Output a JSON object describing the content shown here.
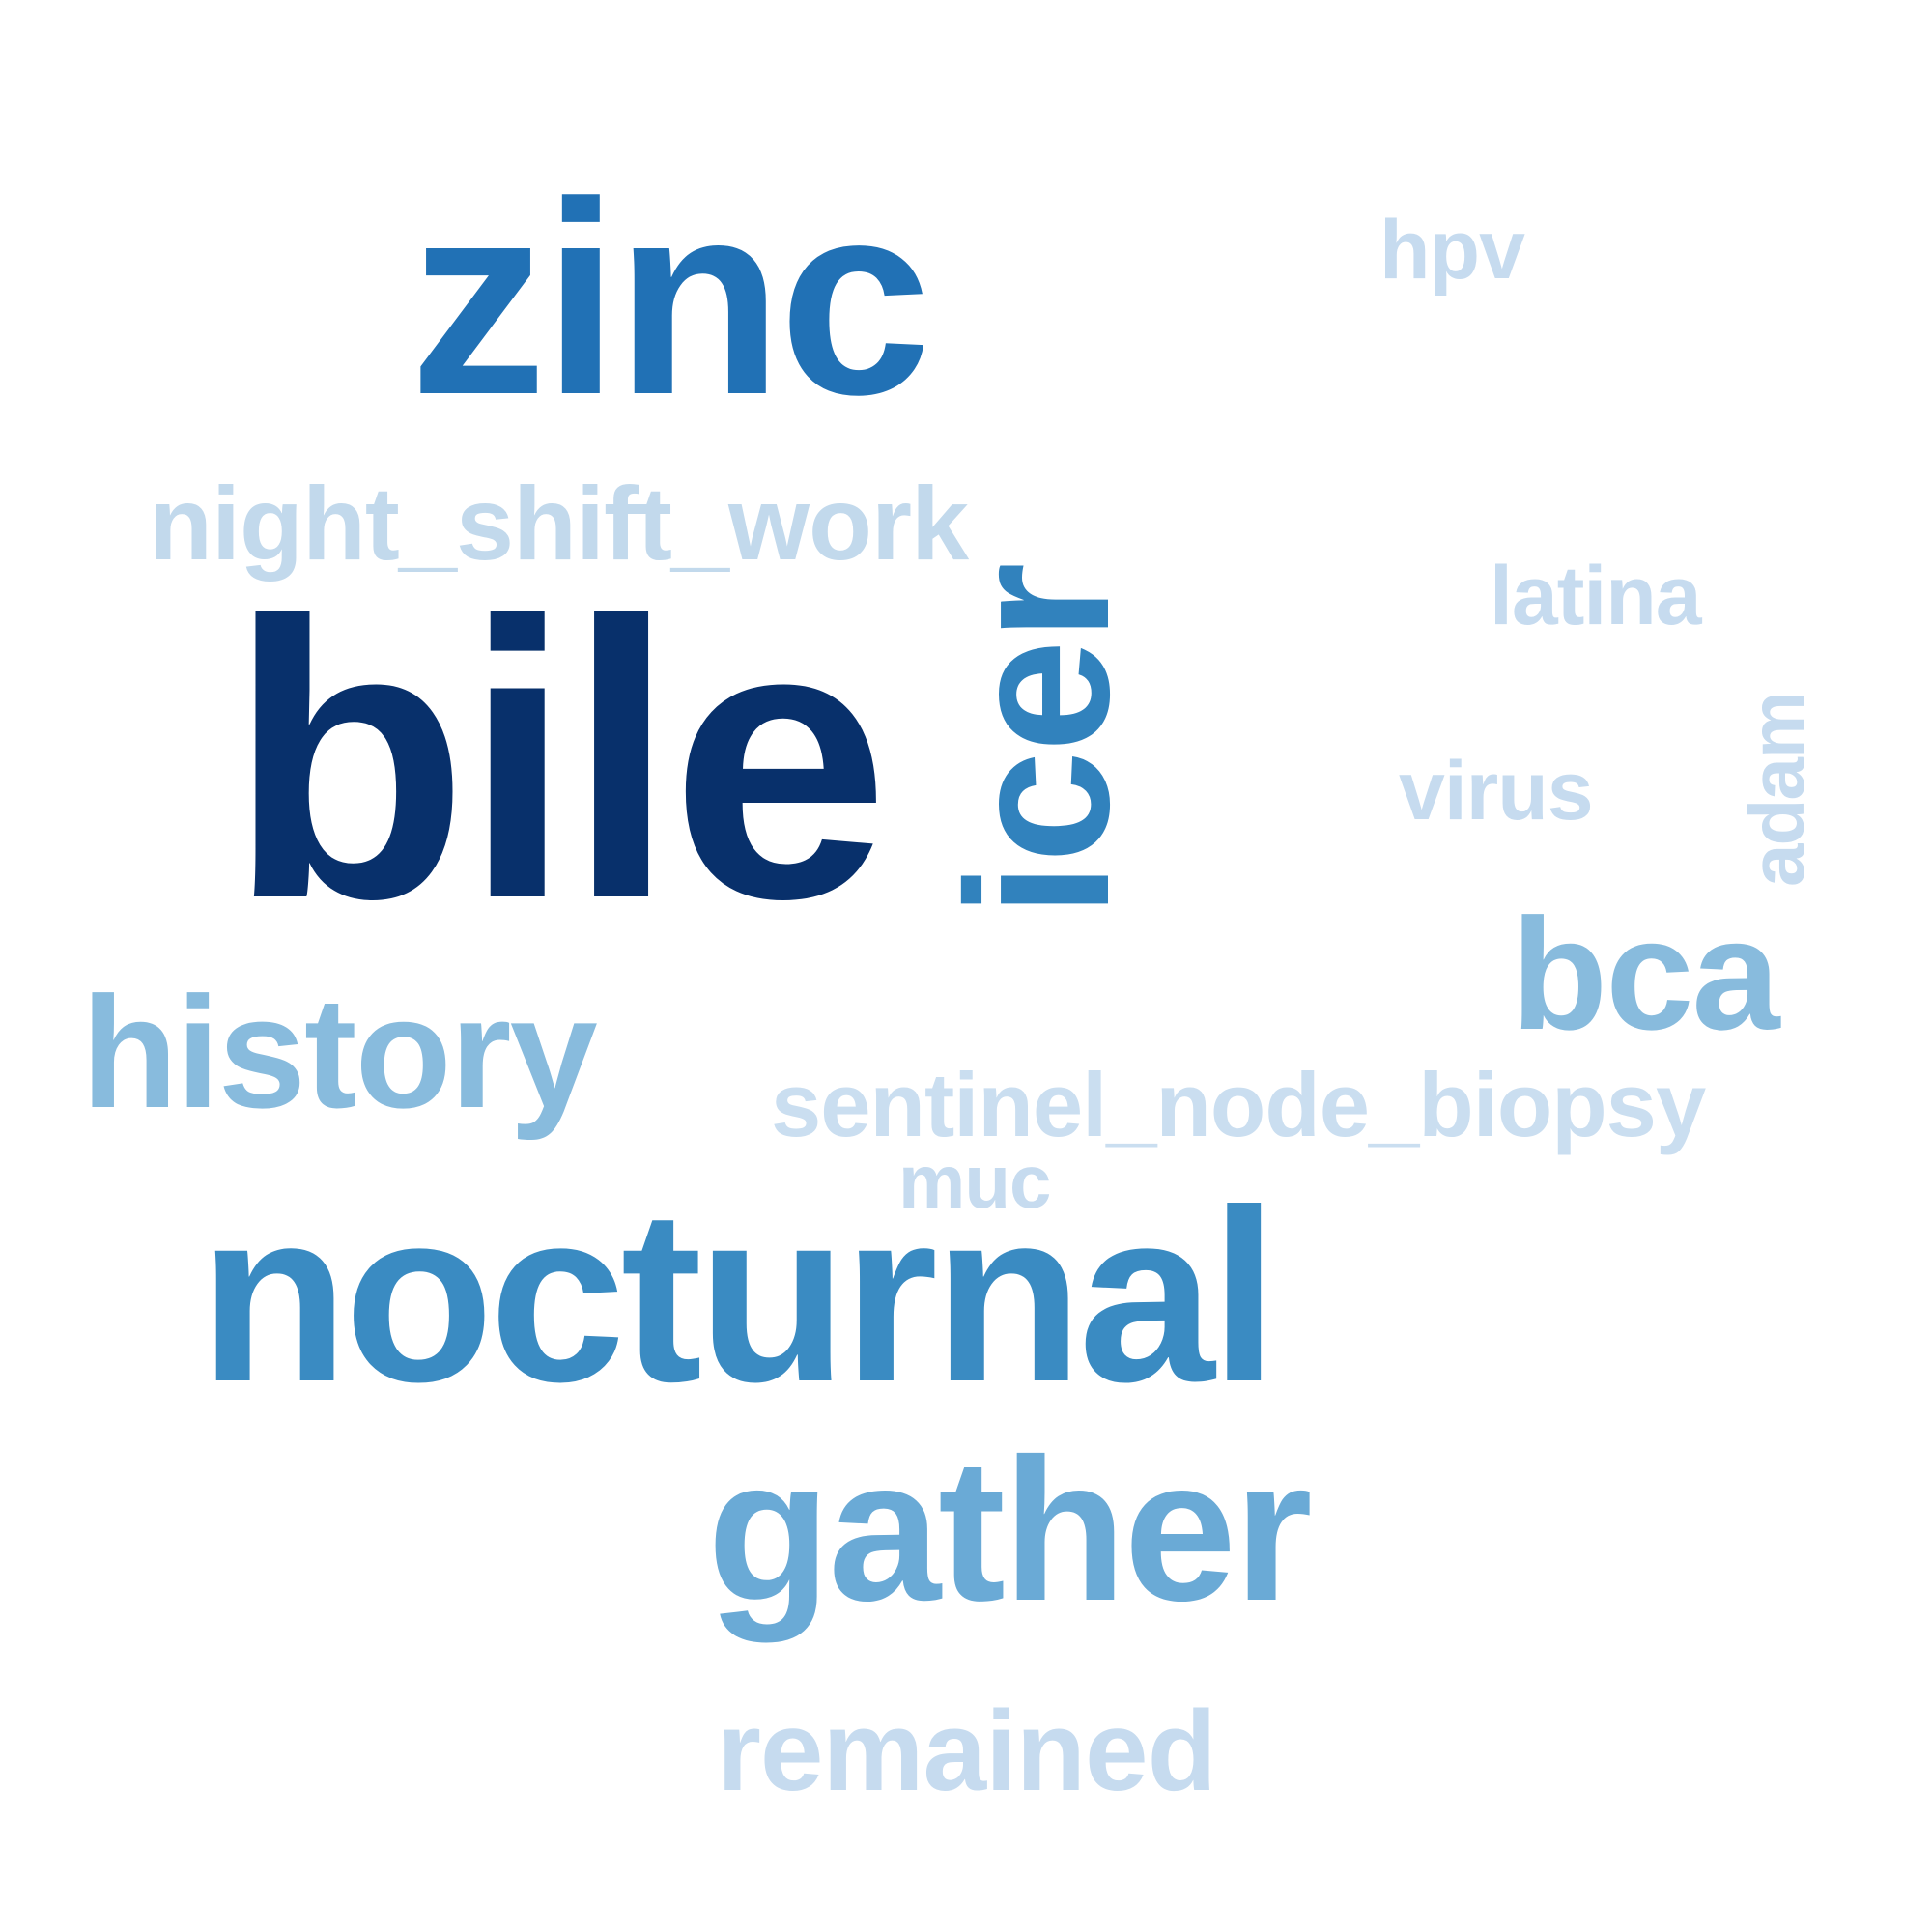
{
  "words": [
    {
      "id": "bile",
      "text": "bile",
      "color": "#08306b"
    },
    {
      "id": "zinc",
      "text": "zinc",
      "color": "#2171b5"
    },
    {
      "id": "icer",
      "text": "icer",
      "color": "#3182bd",
      "orientation": "vertical"
    },
    {
      "id": "nocturnal",
      "text": "nocturnal",
      "color": "#3a8bc2"
    },
    {
      "id": "gather",
      "text": "gather",
      "color": "#6aaad6"
    },
    {
      "id": "history",
      "text": "history",
      "color": "#88bbdd"
    },
    {
      "id": "bca",
      "text": "bca",
      "color": "#88bbdd"
    },
    {
      "id": "night_shift_work",
      "text": "night_shift_work",
      "color": "#c2d9ec"
    },
    {
      "id": "sentinel_node_biopsy",
      "text": "sentinel_node_biopsy",
      "color": "#cadef0"
    },
    {
      "id": "virus",
      "text": "virus",
      "color": "#c6dbef"
    },
    {
      "id": "hpv",
      "text": "hpv",
      "color": "#c6dbef"
    },
    {
      "id": "latina",
      "text": "latina",
      "color": "#c6dbef"
    },
    {
      "id": "adam",
      "text": "adam",
      "color": "#c6dbef",
      "orientation": "vertical"
    },
    {
      "id": "muc",
      "text": "muc",
      "color": "#c6dbef"
    },
    {
      "id": "remained",
      "text": "remained",
      "color": "#c6dbef"
    }
  ]
}
